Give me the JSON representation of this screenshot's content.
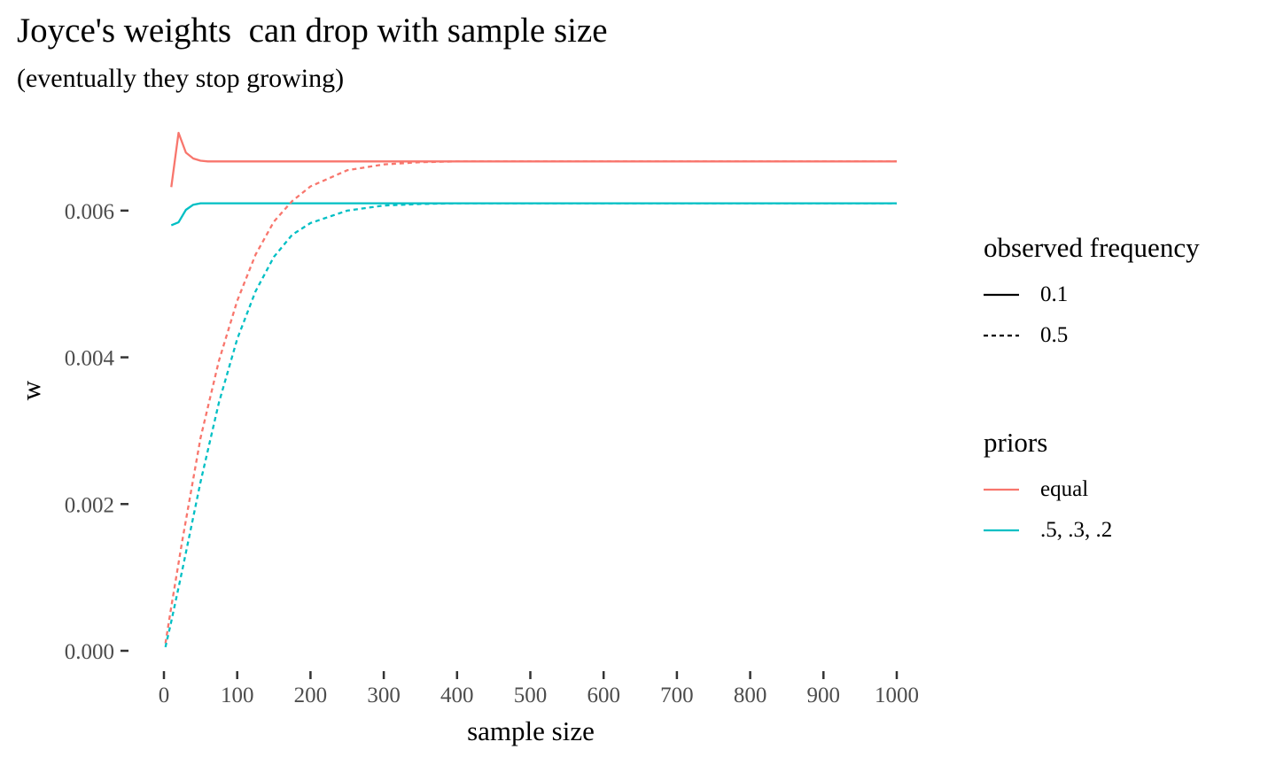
{
  "chart_data": {
    "type": "line",
    "title": "Joyce's weights  can drop with sample size",
    "subtitle": "(eventually they stop growing)",
    "xlabel": "sample size",
    "ylabel": "w",
    "xlim": [
      0,
      1000
    ],
    "ylim": [
      0,
      0.007
    ],
    "x_ticks": [
      "0",
      "100",
      "200",
      "300",
      "400",
      "500",
      "600",
      "700",
      "800",
      "900",
      "1000"
    ],
    "y_ticks": [
      "0.000",
      "0.002",
      "0.004",
      "0.006"
    ],
    "grid": false,
    "legend_placement": "right",
    "colors": {
      "equal": "#F8766D",
      "priors_532": "#00BFC4"
    },
    "legends": [
      {
        "title": "observed frequency",
        "kind": "linetype",
        "items": [
          {
            "label": "0.1",
            "dash": "solid"
          },
          {
            "label": "0.5",
            "dash": "dashed"
          }
        ]
      },
      {
        "title": "priors",
        "kind": "color",
        "items": [
          {
            "label": "equal",
            "color": "#F8766D"
          },
          {
            "label": ".5, .3, .2",
            "color": "#00BFC4"
          }
        ]
      }
    ],
    "series": [
      {
        "prior": "equal",
        "frequency": "0.1",
        "color": "#F8766D",
        "dash": "solid",
        "x": [
          10,
          20,
          30,
          40,
          50,
          60,
          80,
          100,
          150,
          200,
          300,
          400,
          500,
          600,
          700,
          800,
          900,
          1000
        ],
        "y": [
          0.00632,
          0.00706,
          0.00679,
          0.00671,
          0.00668,
          0.00667,
          0.00667,
          0.00667,
          0.00667,
          0.00667,
          0.00667,
          0.00667,
          0.00667,
          0.00667,
          0.00667,
          0.00667,
          0.00667,
          0.00667
        ]
      },
      {
        "prior": ".5, .3, .2",
        "frequency": "0.1",
        "color": "#00BFC4",
        "dash": "solid",
        "x": [
          10,
          20,
          30,
          40,
          50,
          60,
          80,
          100,
          150,
          200,
          300,
          400,
          500,
          600,
          700,
          800,
          900,
          1000
        ],
        "y": [
          0.0058,
          0.00584,
          0.00601,
          0.00608,
          0.0061,
          0.0061,
          0.0061,
          0.0061,
          0.0061,
          0.0061,
          0.0061,
          0.0061,
          0.0061,
          0.0061,
          0.0061,
          0.0061,
          0.0061,
          0.0061
        ]
      },
      {
        "prior": "equal",
        "frequency": "0.5",
        "color": "#F8766D",
        "dash": "dashed",
        "x": [
          2,
          10,
          25,
          50,
          75,
          100,
          125,
          150,
          175,
          200,
          250,
          300,
          350,
          400,
          500,
          600,
          700,
          800,
          900,
          1000
        ],
        "y": [
          0.0001,
          0.0006,
          0.0015,
          0.0029,
          0.00395,
          0.00477,
          0.0054,
          0.00585,
          0.00613,
          0.00633,
          0.00655,
          0.00663,
          0.00666,
          0.00667,
          0.00667,
          0.00667,
          0.00667,
          0.00667,
          0.00667,
          0.00667
        ]
      },
      {
        "prior": ".5, .3, .2",
        "frequency": "0.5",
        "color": "#00BFC4",
        "dash": "dashed",
        "x": [
          2,
          10,
          25,
          50,
          75,
          100,
          125,
          150,
          175,
          200,
          250,
          300,
          350,
          400,
          500,
          600,
          700,
          800,
          900,
          1000
        ],
        "y": [
          5e-05,
          0.0004,
          0.0011,
          0.0023,
          0.00338,
          0.00425,
          0.0049,
          0.00537,
          0.00567,
          0.00583,
          0.006,
          0.00607,
          0.00609,
          0.0061,
          0.0061,
          0.0061,
          0.0061,
          0.0061,
          0.0061,
          0.0061
        ]
      }
    ]
  }
}
